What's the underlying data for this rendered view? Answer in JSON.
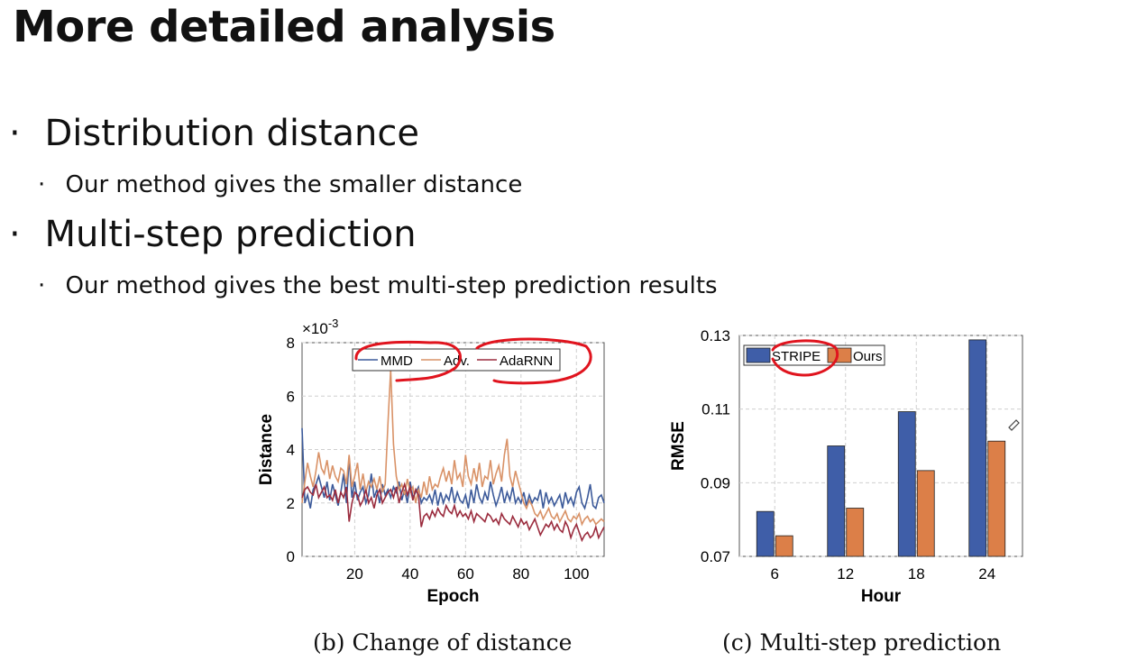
{
  "slide": {
    "title": "More detailed analysis",
    "bullets": [
      {
        "text": "Distribution distance",
        "sub": "Our method gives the smaller distance"
      },
      {
        "text": "Multi-step prediction",
        "sub": "Our method gives the best multi-step prediction results"
      }
    ],
    "bullet_char": "·",
    "sub_bullet_char": "·"
  },
  "chart_data": [
    {
      "type": "line",
      "caption": "(b)  Change of distance",
      "xlabel": "Epoch",
      "ylabel": "Distance",
      "y_multiplier": "×10",
      "y_exponent": "-3",
      "xlim": [
        1,
        110
      ],
      "ylim": [
        0,
        8
      ],
      "xticks": [
        20,
        40,
        60,
        80,
        100
      ],
      "yticks": [
        0,
        2,
        4,
        6,
        8
      ],
      "grid": true,
      "legend_position": "top",
      "series": [
        {
          "name": "MMD",
          "color": "#3c5a9a",
          "values": [
            4.8,
            2.0,
            2.3,
            1.8,
            2.5,
            2.7,
            3.0,
            2.6,
            2.2,
            2.8,
            2.1,
            2.7,
            2.3,
            1.9,
            2.4,
            3.1,
            2.0,
            3.7,
            2.2,
            2.8,
            2.1,
            2.4,
            2.6,
            2.0,
            2.3,
            3.1,
            2.2,
            2.5,
            2.0,
            2.7,
            2.3,
            2.5,
            2.2,
            2.6,
            2.4,
            2.8,
            2.1,
            2.5,
            2.0,
            2.8,
            2.2,
            2.4,
            2.6,
            2.0,
            2.2,
            2.1,
            2.3,
            2.0,
            2.5,
            1.9,
            2.4,
            2.0,
            2.3,
            2.1,
            2.6,
            2.0,
            2.4,
            2.1,
            2.0,
            2.3,
            1.8,
            2.5,
            2.0,
            2.7,
            2.2,
            2.0,
            2.4,
            2.1,
            2.8,
            2.3,
            1.9,
            2.2,
            2.6,
            2.0,
            2.4,
            2.1,
            2.6,
            2.0,
            2.2,
            2.0,
            2.4,
            1.9,
            2.3,
            2.0,
            2.2,
            2.1,
            2.5,
            1.8,
            2.4,
            2.0,
            2.2,
            1.9,
            2.1,
            2.3,
            1.8,
            2.4,
            2.0,
            2.2,
            1.9,
            2.4,
            2.6,
            2.0,
            1.8,
            2.2,
            2.7,
            1.9,
            1.8,
            2.2,
            2.3,
            2.0
          ]
        },
        {
          "name": "Adv.",
          "color": "#d99267",
          "values": [
            2.0,
            2.8,
            3.5,
            3.0,
            2.6,
            3.2,
            3.9,
            3.3,
            3.1,
            3.6,
            2.9,
            3.4,
            3.0,
            2.8,
            3.3,
            3.2,
            2.7,
            3.8,
            2.6,
            3.0,
            3.5,
            2.5,
            3.1,
            2.4,
            2.8,
            2.6,
            2.9,
            2.5,
            3.0,
            2.4,
            2.7,
            5.0,
            7.0,
            4.2,
            3.0,
            2.5,
            2.7,
            2.3,
            2.9,
            2.4,
            2.6,
            2.0,
            2.5,
            2.2,
            2.8,
            2.3,
            3.0,
            2.5,
            2.7,
            2.6,
            3.0,
            3.3,
            2.8,
            3.2,
            2.7,
            3.6,
            2.9,
            3.1,
            2.6,
            3.8,
            3.0,
            2.7,
            3.3,
            2.8,
            3.5,
            2.6,
            3.0,
            2.9,
            3.6,
            2.7,
            3.1,
            3.4,
            2.8,
            3.8,
            4.4,
            3.0,
            2.6,
            3.2,
            2.8,
            2.4,
            2.0,
            1.8,
            2.1,
            1.9,
            1.6,
            1.5,
            1.7,
            1.4,
            1.6,
            1.8,
            1.5,
            1.4,
            1.6,
            1.3,
            1.5,
            1.7,
            1.4,
            1.3,
            1.5,
            1.4,
            1.6,
            1.2,
            1.4,
            1.5,
            1.3,
            1.4,
            1.2,
            1.3,
            1.4,
            1.3
          ]
        },
        {
          "name": "AdaRNN",
          "color": "#9b2c3e",
          "values": [
            2.2,
            2.5,
            2.6,
            2.4,
            2.3,
            2.7,
            2.2,
            2.4,
            2.6,
            2.2,
            2.3,
            2.1,
            2.5,
            2.0,
            2.4,
            2.2,
            2.6,
            1.3,
            2.0,
            2.4,
            2.3,
            1.9,
            2.1,
            2.5,
            2.0,
            2.2,
            1.8,
            2.3,
            2.5,
            2.0,
            2.2,
            2.4,
            2.5,
            2.2,
            2.6,
            2.0,
            2.4,
            2.7,
            2.3,
            2.6,
            2.1,
            2.5,
            2.3,
            1.1,
            1.5,
            1.6,
            1.4,
            1.7,
            1.5,
            1.8,
            1.6,
            1.5,
            1.9,
            1.7,
            1.6,
            1.9,
            1.5,
            1.7,
            1.5,
            1.6,
            1.4,
            1.7,
            1.3,
            1.6,
            1.5,
            1.4,
            1.3,
            1.6,
            1.5,
            1.3,
            1.4,
            1.2,
            1.6,
            1.4,
            1.3,
            1.2,
            1.5,
            1.3,
            1.1,
            1.4,
            1.2,
            1.3,
            1.0,
            1.2,
            1.4,
            1.1,
            0.8,
            1.0,
            1.2,
            1.1,
            1.3,
            1.0,
            1.2,
            1.0,
            0.9,
            1.3,
            1.1,
            0.7,
            1.0,
            1.2,
            0.9,
            0.6,
            0.8,
            0.9,
            0.7,
            0.8,
            1.1,
            0.7,
            0.9,
            1.1
          ]
        }
      ]
    },
    {
      "type": "bar",
      "caption": "(c)  Multi-step prediction",
      "xlabel": "Hour",
      "ylabel": "RMSE",
      "categories": [
        "6",
        "12",
        "18",
        "24"
      ],
      "ylim": [
        0.07,
        0.13
      ],
      "yticks": [
        "0.07",
        "0.09",
        "0.11",
        "0.13"
      ],
      "grid": true,
      "legend_position": "top-left",
      "series": [
        {
          "name": "STRIPE",
          "color": "#3f5ea8",
          "values": [
            0.0822,
            0.1,
            0.1093,
            0.1288
          ]
        },
        {
          "name": "Ours",
          "color": "#dc7f48",
          "values": [
            0.0756,
            0.0831,
            0.0933,
            0.1013
          ]
        }
      ]
    }
  ],
  "annotation_color": "#e0141e"
}
